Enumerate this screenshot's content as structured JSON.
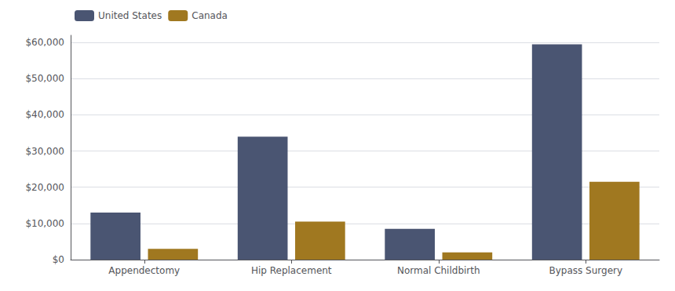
{
  "chart_data": {
    "type": "bar",
    "categories": [
      "Appendectomy",
      "Hip Replacement",
      "Normal Childbirth",
      "Bypass Surgery"
    ],
    "series": [
      {
        "name": "United States",
        "color": "#4a5572",
        "values": [
          13000,
          34000,
          8500,
          59500
        ]
      },
      {
        "name": "Canada",
        "color": "#a07820",
        "values": [
          3000,
          10500,
          2000,
          21500
        ]
      }
    ],
    "ylim": [
      0,
      62000
    ],
    "yticks": [
      {
        "value": 0,
        "label": "$0"
      },
      {
        "value": 10000,
        "label": "$10,000"
      },
      {
        "value": 20000,
        "label": "$20,000"
      },
      {
        "value": 30000,
        "label": "$30,000"
      },
      {
        "value": 40000,
        "label": "$40,000"
      },
      {
        "value": 50000,
        "label": "$50,000"
      },
      {
        "value": 60000,
        "label": "$60,000"
      }
    ],
    "grid": true,
    "legend": "upper left"
  }
}
